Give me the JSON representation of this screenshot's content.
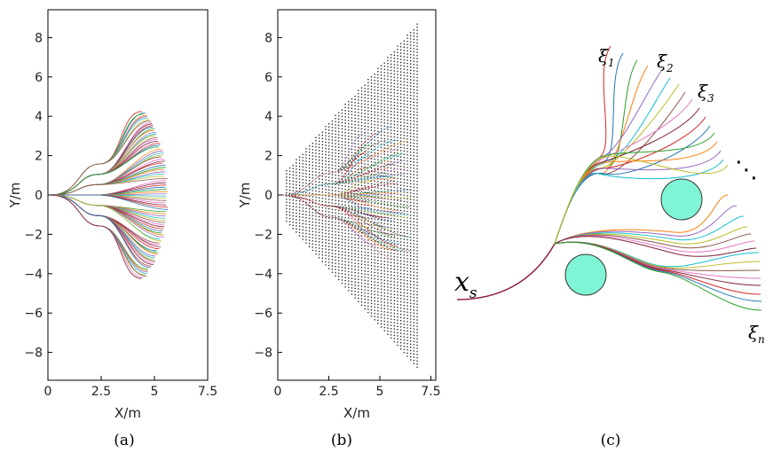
{
  "panels": [
    {
      "id": "a",
      "caption": "(a)",
      "xlabel": "X/m",
      "ylabel": "Y/m",
      "xticks": [
        "0",
        "2.5",
        "5",
        "7.5"
      ],
      "yticks": [
        "8",
        "6",
        "4",
        "2",
        "0",
        "−2",
        "−4",
        "−6",
        "−8"
      ]
    },
    {
      "id": "b",
      "caption": "(b)",
      "xlabel": "X/m",
      "ylabel": "Y/m",
      "xticks": [
        "0",
        "2.5",
        "5",
        "7.5"
      ],
      "yticks": [
        "8",
        "6",
        "4",
        "2",
        "0",
        "−2",
        "−4",
        "−6",
        "−8"
      ]
    },
    {
      "id": "c",
      "caption": "(c)",
      "start_label": "x",
      "start_sub": "s",
      "end_labels": [
        {
          "sym": "ξ",
          "sub": "1"
        },
        {
          "sym": "ξ",
          "sub": "2"
        },
        {
          "sym": "ξ",
          "sub": "3"
        },
        {
          "sym": "ξ",
          "sub": "n"
        }
      ],
      "ellipsis": "⋱",
      "obstacle_color": "#7ff5d6"
    }
  ],
  "colors": [
    "#d62728",
    "#1f77b4",
    "#2ca02c",
    "#ff7f0e",
    "#9467bd",
    "#17becf",
    "#bcbd22",
    "#8c564b",
    "#e377c2",
    "#7f1f3a"
  ]
}
